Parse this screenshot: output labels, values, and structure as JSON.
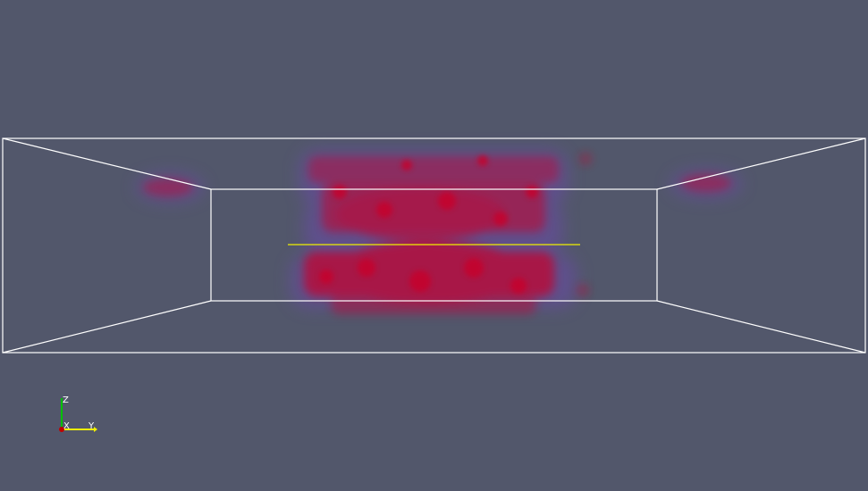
{
  "viewport": {
    "background": "#52576b",
    "outline_color": "#ffffff",
    "center_line_color": "#f0f000",
    "volume_color": "#c8002a",
    "volume_edge_color": "#6a4aa8"
  },
  "orientation_axes": {
    "z_label": "Z",
    "x_label": "X",
    "y_label": "Y",
    "z_color": "#00c000",
    "x_color": "#c00000",
    "y_color": "#f0f000"
  }
}
